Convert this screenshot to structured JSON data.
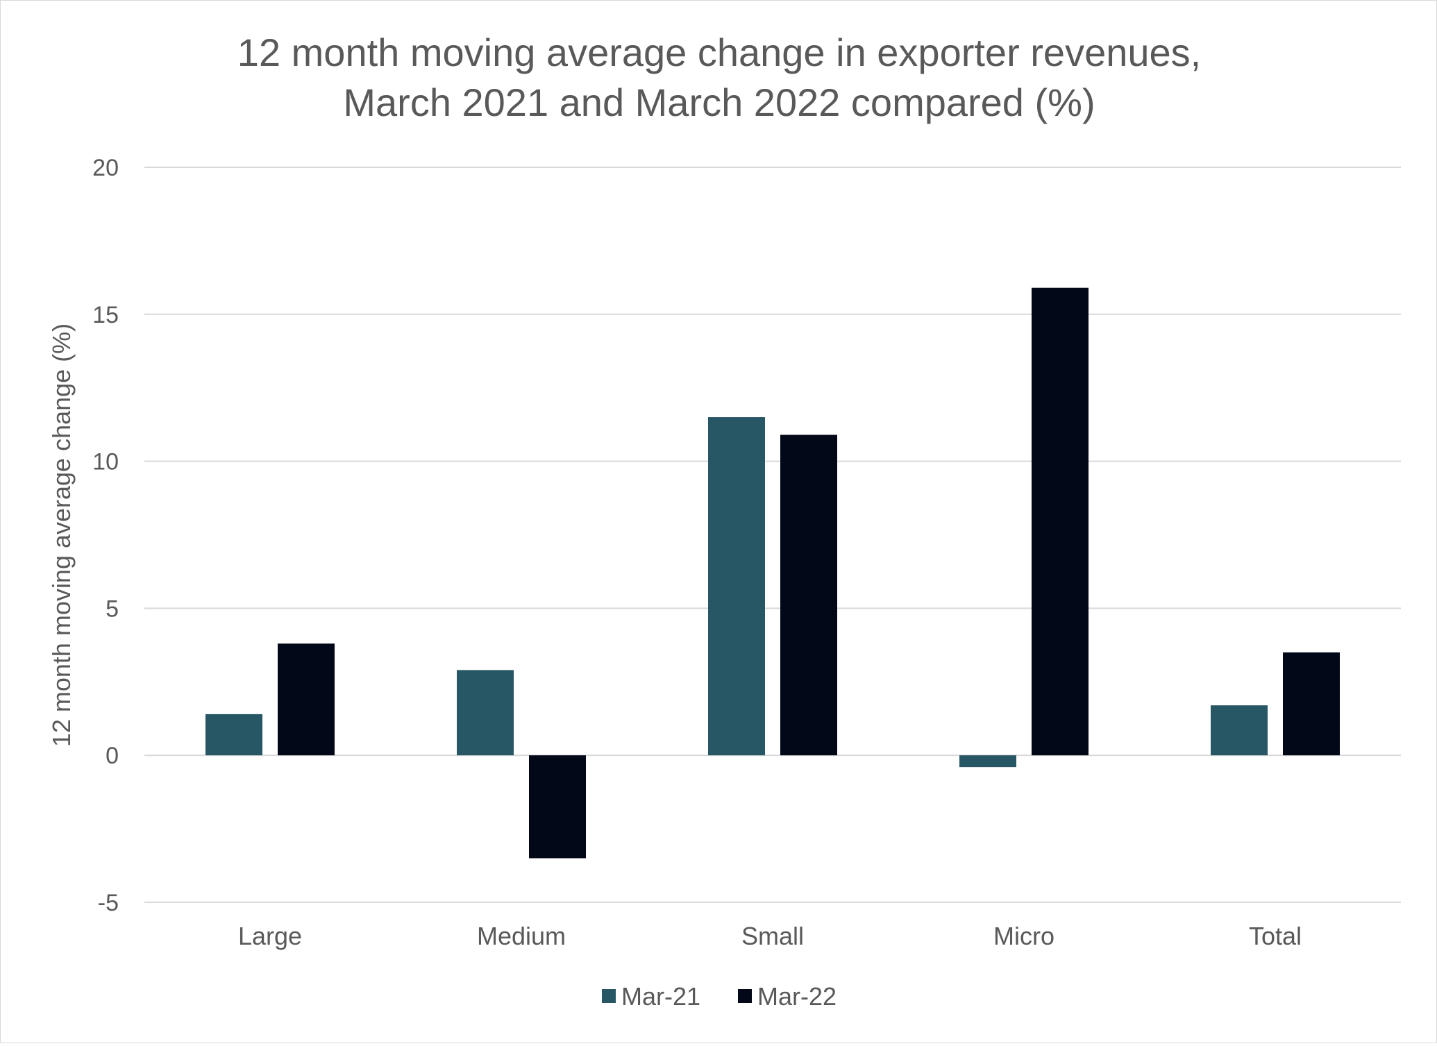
{
  "chart_data": {
    "type": "bar",
    "title": "12 month moving average change in exporter revenues, March 2021 and March 2022 compared (%)",
    "title_lines": [
      "12 month moving average change in exporter revenues,",
      "March 2021 and March 2022 compared (%)"
    ],
    "xlabel": "",
    "ylabel": "12 month moving average change (%)",
    "ylim": [
      -5,
      20
    ],
    "yticks": [
      -5,
      0,
      5,
      10,
      15,
      20
    ],
    "grid": true,
    "legend_position": "bottom",
    "categories": [
      "Large",
      "Medium",
      "Small",
      "Micro",
      "Total"
    ],
    "series": [
      {
        "name": "Mar-21",
        "color": "#275764",
        "values": [
          1.4,
          2.9,
          11.5,
          -0.4,
          1.7
        ]
      },
      {
        "name": "Mar-22",
        "color": "#030818",
        "values": [
          3.8,
          -3.5,
          10.9,
          15.9,
          3.5
        ]
      }
    ]
  }
}
